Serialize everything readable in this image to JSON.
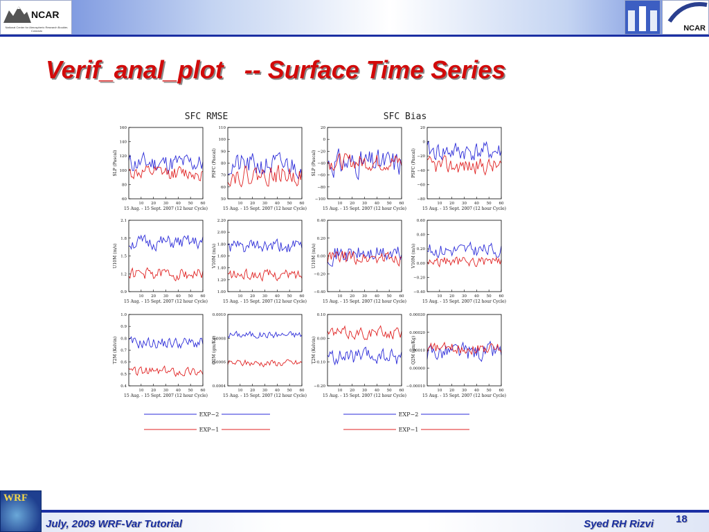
{
  "slide": {
    "title": "Verif_anal_plot   -- Surface Time Series",
    "footer_left": "July, 2009 WRF-Var Tutorial",
    "footer_right": "Syed RH Rizvi",
    "page_number": "18"
  },
  "logos": {
    "left_text": "NCAR",
    "left_subtext": "National Center for Atmospheric Research Boulder, Colorado",
    "right_text": "NCAR",
    "wrf_text": "WRF"
  },
  "colors": {
    "exp2": "#2a2ad8",
    "exp1": "#e02020",
    "title": "#d20a0a",
    "footer": "#1a2fa0"
  },
  "column_titles": [
    "SFC  RMSE",
    "SFC  Bias"
  ],
  "legend": [
    {
      "name": "EXP−2",
      "color": "#2a2ad8"
    },
    {
      "name": "EXP−1",
      "color": "#e02020"
    }
  ],
  "chart_data": [
    {
      "type": "line",
      "ylabel": "SLP (Pascal)",
      "xlabel": "15 Aug. - 15 Sept. 2007 (12 hour Cycle)",
      "xlim": [
        0,
        60
      ],
      "ylim": [
        60,
        160
      ],
      "xticks": [
        "10",
        "20",
        "30",
        "40",
        "50",
        "60"
      ],
      "yticks": [
        "60",
        "80",
        "100",
        "120",
        "140",
        "160"
      ],
      "series": [
        {
          "name": "EXP−2",
          "base": 110,
          "amp": 14,
          "seed": 11
        },
        {
          "name": "EXP−1",
          "base": 96,
          "amp": 10,
          "seed": 12
        }
      ]
    },
    {
      "type": "line",
      "ylabel": "PSFC (Pascal)",
      "xlabel": "15 Aug. - 15 Sept. 2007 (12 hour Cycle)",
      "xlim": [
        0,
        60
      ],
      "ylim": [
        50,
        110
      ],
      "xticks": [
        "10",
        "20",
        "30",
        "40",
        "50",
        "60"
      ],
      "yticks": [
        "50",
        "60",
        "70",
        "80",
        "90",
        "100",
        "110"
      ],
      "series": [
        {
          "name": "EXP−2",
          "base": 78,
          "amp": 10,
          "seed": 21
        },
        {
          "name": "EXP−1",
          "base": 70,
          "amp": 8,
          "seed": 22
        }
      ]
    },
    {
      "type": "line",
      "ylabel": "SLP (Pascal)",
      "xlabel": "15 Aug. - 15 Sept. 2007 (12 hour Cycle)",
      "xlim": [
        0,
        60
      ],
      "ylim": [
        -100,
        20
      ],
      "xticks": [
        "10",
        "20",
        "30",
        "40",
        "50",
        "60"
      ],
      "yticks": [
        "−100",
        "−80",
        "−60",
        "−40",
        "−20",
        "0",
        "20"
      ],
      "series": [
        {
          "name": "EXP−2",
          "base": -40,
          "amp": 22,
          "seed": 31
        },
        {
          "name": "EXP−1",
          "base": -38,
          "amp": 14,
          "seed": 32
        }
      ]
    },
    {
      "type": "line",
      "ylabel": "PSFC (Pascal)",
      "xlabel": "15 Aug. - 15 Sept. 2007 (12 hour Cycle)",
      "xlim": [
        0,
        60
      ],
      "ylim": [
        -80,
        20
      ],
      "xticks": [
        "10",
        "20",
        "30",
        "40",
        "50",
        "60"
      ],
      "yticks": [
        "−80",
        "−60",
        "−40",
        "−20",
        "0",
        "20"
      ],
      "series": [
        {
          "name": "EXP−2",
          "base": -14,
          "amp": 14,
          "seed": 41
        },
        {
          "name": "EXP−1",
          "base": -34,
          "amp": 12,
          "seed": 42
        }
      ]
    },
    {
      "type": "line",
      "ylabel": "U10M (m/s)",
      "xlabel": "15 Aug. - 15 Sept. 2007 (12 hour Cycle)",
      "xlim": [
        0,
        60
      ],
      "ylim": [
        0.9,
        2.1
      ],
      "xticks": [
        "10",
        "20",
        "30",
        "40",
        "50",
        "60"
      ],
      "yticks": [
        "0.9",
        "1.2",
        "1.5",
        "1.8",
        "2.1"
      ],
      "series": [
        {
          "name": "EXP−2",
          "base": 1.72,
          "amp": 0.12,
          "seed": 51
        },
        {
          "name": "EXP−1",
          "base": 1.2,
          "amp": 0.1,
          "seed": 52
        }
      ]
    },
    {
      "type": "line",
      "ylabel": "V10M (m/s)",
      "xlabel": "15 Aug. - 15 Sept. 2007 (12 hour Cycle)",
      "xlim": [
        0,
        60
      ],
      "ylim": [
        1.0,
        2.2
      ],
      "xticks": [
        "10",
        "20",
        "30",
        "40",
        "50",
        "60"
      ],
      "yticks": [
        "1.00",
        "1.20",
        "1.40",
        "1.60",
        "1.80",
        "2.00",
        "2.20"
      ],
      "series": [
        {
          "name": "EXP−2",
          "base": 1.75,
          "amp": 0.12,
          "seed": 61
        },
        {
          "name": "EXP−1",
          "base": 1.28,
          "amp": 0.09,
          "seed": 62
        }
      ]
    },
    {
      "type": "line",
      "ylabel": "U10M (m/s)",
      "xlabel": "15 Aug. - 15 Sept. 2007 (12 hour Cycle)",
      "xlim": [
        0,
        60
      ],
      "ylim": [
        -0.4,
        0.4
      ],
      "xticks": [
        "10",
        "20",
        "30",
        "40",
        "50",
        "60"
      ],
      "yticks": [
        "−0.40",
        "−0.20",
        "0.00",
        "0.20",
        "0.40"
      ],
      "series": [
        {
          "name": "EXP−2",
          "base": 0.02,
          "amp": 0.1,
          "seed": 71
        },
        {
          "name": "EXP−1",
          "base": -0.02,
          "amp": 0.08,
          "seed": 72
        }
      ]
    },
    {
      "type": "line",
      "ylabel": "V10M (m/s)",
      "xlabel": "15 Aug. - 15 Sept. 2007 (12 hour Cycle)",
      "xlim": [
        0,
        60
      ],
      "ylim": [
        -0.4,
        0.6
      ],
      "xticks": [
        "10",
        "20",
        "30",
        "40",
        "50",
        "60"
      ],
      "yticks": [
        "−0.40",
        "−0.20",
        "0.00",
        "0.20",
        "0.40",
        "0.60"
      ],
      "series": [
        {
          "name": "EXP−2",
          "base": 0.18,
          "amp": 0.1,
          "seed": 81
        },
        {
          "name": "EXP−1",
          "base": 0.02,
          "amp": 0.07,
          "seed": 82
        }
      ]
    },
    {
      "type": "line",
      "ylabel": "T2M (Kelvin)",
      "xlabel": "15 Aug. - 15 Sept. 2007 (12 hour Cycle)",
      "xlim": [
        0,
        60
      ],
      "ylim": [
        0.4,
        1.0
      ],
      "xticks": [
        "10",
        "20",
        "30",
        "40",
        "50",
        "60"
      ],
      "yticks": [
        "0.4",
        "0.5",
        "0.6",
        "0.7",
        "0.8",
        "0.9",
        "1.0"
      ],
      "series": [
        {
          "name": "EXP−2",
          "base": 0.76,
          "amp": 0.05,
          "seed": 91
        },
        {
          "name": "EXP−1",
          "base": 0.52,
          "amp": 0.04,
          "seed": 92
        }
      ]
    },
    {
      "type": "line",
      "ylabel": "Q2M (gm/Kg)",
      "xlabel": "15 Aug. - 15 Sept. 2007 (12 hour Cycle)",
      "xlim": [
        0,
        60
      ],
      "ylim": [
        0.0004,
        0.001
      ],
      "xticks": [
        "10",
        "20",
        "30",
        "40",
        "50",
        "60"
      ],
      "yticks": [
        "0.0004",
        "0.0006",
        "0.0008",
        "0.0010"
      ],
      "series": [
        {
          "name": "EXP−2",
          "base": 0.00083,
          "amp": 3e-05,
          "seed": 101
        },
        {
          "name": "EXP−1",
          "base": 0.00059,
          "amp": 3e-05,
          "seed": 102
        }
      ]
    },
    {
      "type": "line",
      "ylabel": "T2M (Kelvin)",
      "xlabel": "15 Aug. - 15 Sept. 2007 (12 hour Cycle)",
      "xlim": [
        0,
        60
      ],
      "ylim": [
        -0.2,
        0.15
      ],
      "xticks": [
        "10",
        "20",
        "30",
        "40",
        "50",
        "60"
      ],
      "yticks": [
        "−0.20",
        "−0.10",
        "0.00",
        "0.10"
      ],
      "series": [
        {
          "name": "EXP−2",
          "base": -0.06,
          "amp": 0.04,
          "seed": 111
        },
        {
          "name": "EXP−1",
          "base": 0.06,
          "amp": 0.03,
          "seed": 112
        }
      ]
    },
    {
      "type": "line",
      "ylabel": "Q2M (gm/Kg)",
      "xlabel": "15 Aug. - 15 Sept. 2007 (12 hour Cycle)",
      "xlim": [
        0,
        60
      ],
      "ylim": [
        -0.0001,
        0.0003
      ],
      "xticks": [
        "10",
        "20",
        "30",
        "40",
        "50",
        "60"
      ],
      "yticks": [
        "−0.00010",
        "0.00000",
        "0.00010",
        "0.00020",
        "0.00030"
      ],
      "series": [
        {
          "name": "EXP−2",
          "base": 9e-05,
          "amp": 5e-05,
          "seed": 121
        },
        {
          "name": "EXP−1",
          "base": 0.00011,
          "amp": 3e-05,
          "seed": 122
        }
      ]
    }
  ]
}
